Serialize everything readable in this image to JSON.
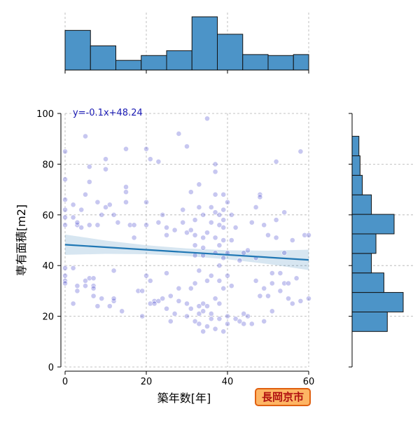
{
  "chart_data": {
    "type": "scatter",
    "title": "",
    "xlabel": "築年数[年]",
    "ylabel": "専有面積[m2]",
    "xlim": [
      0,
      60
    ],
    "ylim": [
      0,
      100
    ],
    "x_ticks": [
      0,
      20,
      40,
      60
    ],
    "y_ticks": [
      0,
      20,
      40,
      60,
      80,
      100
    ],
    "grid": true,
    "regression": {
      "equation": "y=-0.1x+48.24",
      "slope": -0.1,
      "intercept": 48.24,
      "ci_band": true
    },
    "point_color": "#3535c8",
    "line_color": "#1f77b4",
    "bar_color": "#4c94c8",
    "points": [
      [
        0,
        85
      ],
      [
        0,
        74
      ],
      [
        0,
        66
      ],
      [
        0,
        62
      ],
      [
        0,
        59
      ],
      [
        0,
        56
      ],
      [
        0,
        39
      ],
      [
        0,
        36
      ],
      [
        0,
        34
      ],
      [
        0,
        33
      ],
      [
        2,
        25
      ],
      [
        2,
        39
      ],
      [
        2,
        59
      ],
      [
        2,
        64
      ],
      [
        3,
        56
      ],
      [
        3,
        57
      ],
      [
        3,
        30
      ],
      [
        3,
        32
      ],
      [
        4,
        55
      ],
      [
        4,
        62
      ],
      [
        5,
        34
      ],
      [
        5,
        32
      ],
      [
        5,
        68
      ],
      [
        5,
        91
      ],
      [
        6,
        35
      ],
      [
        6,
        56
      ],
      [
        6,
        79
      ],
      [
        6,
        73
      ],
      [
        7,
        35
      ],
      [
        7,
        32
      ],
      [
        7,
        31
      ],
      [
        7,
        28
      ],
      [
        8,
        56
      ],
      [
        8,
        24
      ],
      [
        8,
        65
      ],
      [
        9,
        60
      ],
      [
        9,
        27
      ],
      [
        10,
        82
      ],
      [
        10,
        78
      ],
      [
        10,
        63
      ],
      [
        11,
        64
      ],
      [
        11,
        24
      ],
      [
        12,
        60
      ],
      [
        12,
        26
      ],
      [
        12,
        27
      ],
      [
        12,
        38
      ],
      [
        13,
        57
      ],
      [
        14,
        22
      ],
      [
        15,
        65
      ],
      [
        15,
        69
      ],
      [
        15,
        71
      ],
      [
        15,
        86
      ],
      [
        16,
        56
      ],
      [
        17,
        56
      ],
      [
        17,
        51
      ],
      [
        18,
        30
      ],
      [
        19,
        20
      ],
      [
        19,
        30
      ],
      [
        20,
        86
      ],
      [
        20,
        36
      ],
      [
        20,
        56
      ],
      [
        20,
        65
      ],
      [
        21,
        34
      ],
      [
        21,
        25
      ],
      [
        21,
        82
      ],
      [
        22,
        26
      ],
      [
        22,
        25
      ],
      [
        23,
        81
      ],
      [
        23,
        57
      ],
      [
        23,
        26
      ],
      [
        24,
        27
      ],
      [
        24,
        60
      ],
      [
        25,
        52
      ],
      [
        25,
        55
      ],
      [
        25,
        23
      ],
      [
        25,
        37
      ],
      [
        26,
        28
      ],
      [
        26,
        18
      ],
      [
        27,
        21
      ],
      [
        27,
        54
      ],
      [
        28,
        92
      ],
      [
        28,
        31
      ],
      [
        28,
        26
      ],
      [
        29,
        57
      ],
      [
        29,
        62
      ],
      [
        30,
        25
      ],
      [
        30,
        20
      ],
      [
        30,
        53
      ],
      [
        30,
        87
      ],
      [
        31,
        69
      ],
      [
        31,
        54
      ],
      [
        31,
        31
      ],
      [
        31,
        23
      ],
      [
        32,
        48
      ],
      [
        32,
        44
      ],
      [
        32,
        52
      ],
      [
        32,
        58
      ],
      [
        32,
        33
      ],
      [
        32,
        18
      ],
      [
        33,
        72
      ],
      [
        33,
        63
      ],
      [
        33,
        38
      ],
      [
        33,
        24
      ],
      [
        33,
        21
      ],
      [
        33,
        17
      ],
      [
        34,
        25
      ],
      [
        34,
        22
      ],
      [
        34,
        14
      ],
      [
        34,
        60
      ],
      [
        34,
        51
      ],
      [
        34,
        47
      ],
      [
        34,
        44
      ],
      [
        35,
        98
      ],
      [
        35,
        53
      ],
      [
        35,
        34
      ],
      [
        35,
        24
      ],
      [
        35,
        16
      ],
      [
        36,
        63
      ],
      [
        36,
        57
      ],
      [
        36,
        21
      ],
      [
        36,
        19
      ],
      [
        36,
        36
      ],
      [
        37,
        80
      ],
      [
        37,
        77
      ],
      [
        37,
        68
      ],
      [
        37,
        61
      ],
      [
        37,
        51
      ],
      [
        37,
        45
      ],
      [
        37,
        27
      ],
      [
        37,
        15
      ],
      [
        38,
        60
      ],
      [
        38,
        56
      ],
      [
        38,
        48
      ],
      [
        38,
        40
      ],
      [
        38,
        34
      ],
      [
        38,
        25
      ],
      [
        38,
        19
      ],
      [
        39,
        68
      ],
      [
        39,
        62
      ],
      [
        39,
        58
      ],
      [
        39,
        55
      ],
      [
        39,
        50
      ],
      [
        39,
        43
      ],
      [
        39,
        31
      ],
      [
        39,
        14
      ],
      [
        40,
        65
      ],
      [
        40,
        45
      ],
      [
        40,
        36
      ],
      [
        40,
        20
      ],
      [
        40,
        17
      ],
      [
        41,
        60
      ],
      [
        41,
        50
      ],
      [
        41,
        32
      ],
      [
        42,
        55
      ],
      [
        42,
        19
      ],
      [
        43,
        42
      ],
      [
        43,
        18
      ],
      [
        44,
        45
      ],
      [
        44,
        21
      ],
      [
        44,
        17
      ],
      [
        45,
        46
      ],
      [
        45,
        20
      ],
      [
        46,
        17
      ],
      [
        46,
        57
      ],
      [
        47,
        43
      ],
      [
        47,
        63
      ],
      [
        47,
        34
      ],
      [
        48,
        68
      ],
      [
        48,
        67
      ],
      [
        48,
        28
      ],
      [
        49,
        56
      ],
      [
        49,
        31
      ],
      [
        49,
        18
      ],
      [
        50,
        52
      ],
      [
        50,
        28
      ],
      [
        51,
        37
      ],
      [
        51,
        33
      ],
      [
        51,
        22
      ],
      [
        52,
        81
      ],
      [
        52,
        58
      ],
      [
        52,
        51
      ],
      [
        53,
        37
      ],
      [
        53,
        30
      ],
      [
        54,
        61
      ],
      [
        54,
        33
      ],
      [
        54,
        45
      ],
      [
        55,
        27
      ],
      [
        55,
        33
      ],
      [
        56,
        25
      ],
      [
        56,
        50
      ],
      [
        57,
        35
      ],
      [
        58,
        85
      ],
      [
        58,
        26
      ],
      [
        59,
        52
      ],
      [
        60,
        52
      ],
      [
        60,
        27
      ]
    ],
    "x_hist": {
      "bin_edges": [
        0,
        6.25,
        12.5,
        18.75,
        25,
        31.25,
        37.5,
        43.75,
        50,
        56.25,
        62.5
      ],
      "counts": [
        41,
        25,
        10,
        15,
        20,
        55,
        37,
        16,
        15,
        16
      ]
    },
    "y_hist": {
      "bin_edges": [
        14,
        21.7,
        29.4,
        37.1,
        44.8,
        52.5,
        60.2,
        67.9,
        75.6,
        83.3,
        91
      ],
      "counts": [
        31,
        45,
        28,
        17,
        21,
        37,
        17,
        9,
        7,
        6
      ]
    }
  },
  "badge": {
    "label": "長岡京市"
  }
}
